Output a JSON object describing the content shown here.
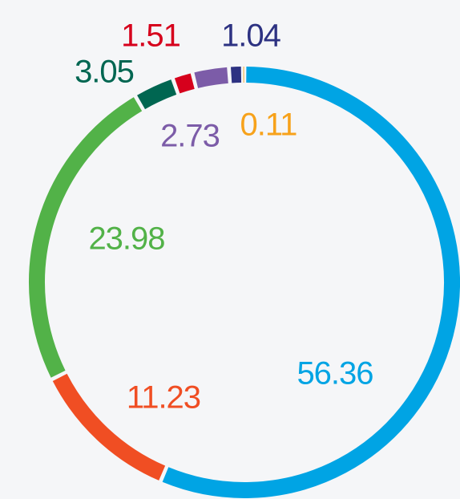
{
  "chart_data": {
    "type": "donut",
    "values": [
      56.36,
      11.23,
      23.98,
      3.05,
      1.51,
      2.73,
      1.04,
      0.11
    ],
    "colors": [
      "#00a4e4",
      "#f04e23",
      "#52b248",
      "#006651",
      "#d6001c",
      "#7c5ca8",
      "#2d3282",
      "#f7a21b"
    ]
  }
}
